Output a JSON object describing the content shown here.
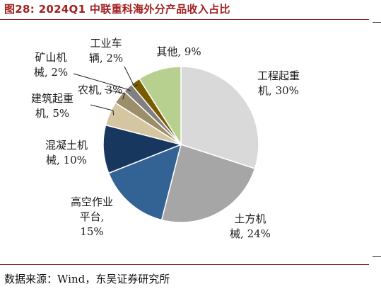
{
  "title": "图28:  2024Q1 中联重科海外分产品收入占比",
  "source": "数据来源：Wind，东吴证券研究所",
  "chart_data": {
    "type": "pie",
    "title": "图28:  2024Q1 中联重科海外分产品收入占比",
    "start": "12 o'clock, clockwise",
    "slices": [
      {
        "label_lines": [
          "工程起重",
          "机, 30%"
        ],
        "label": "工程起重机",
        "value": 30,
        "color": "#d9d9d9",
        "label_color": "#1a1a1a"
      },
      {
        "label_lines": [
          "土方机",
          "械, 24%"
        ],
        "label": "土方机械",
        "value": 24,
        "color": "#a6a6a6",
        "label_color": "#1a1a1a"
      },
      {
        "label_lines": [
          "高空作业",
          "平台,",
          "15%"
        ],
        "label": "高空作业平台",
        "value": 15,
        "color": "#336294",
        "label_color": "#1a1a1a"
      },
      {
        "label_lines": [
          "混凝土机",
          "械, 10%"
        ],
        "label": "混凝土机械",
        "value": 10,
        "color": "#17375e",
        "label_color": "#1a1a1a"
      },
      {
        "label_lines": [
          "建筑起重",
          "机, 5%"
        ],
        "label": "建筑起重机",
        "value": 5,
        "color": "#d5c6a2",
        "label_color": "#1a1a1a"
      },
      {
        "label_lines": [
          "农机, 3%"
        ],
        "label": "农机",
        "value": 3,
        "color": "#9c8e68",
        "label_color": "#1a1a1a"
      },
      {
        "label_lines": [
          "矿山机",
          "械, 2%"
        ],
        "label": "矿山机械",
        "value": 2,
        "color": "#808080",
        "label_color": "#e0301e"
      },
      {
        "label_lines": [
          "工业车",
          "辆, 2%"
        ],
        "label": "工业车辆",
        "value": 2,
        "color": "#7a5c00",
        "label_color": "#1a1a1a"
      },
      {
        "label_lines": [
          "其他, 9%"
        ],
        "label": "其他",
        "value": 9,
        "color": "#b8d08f",
        "label_color": "#1a1a1a"
      }
    ]
  }
}
